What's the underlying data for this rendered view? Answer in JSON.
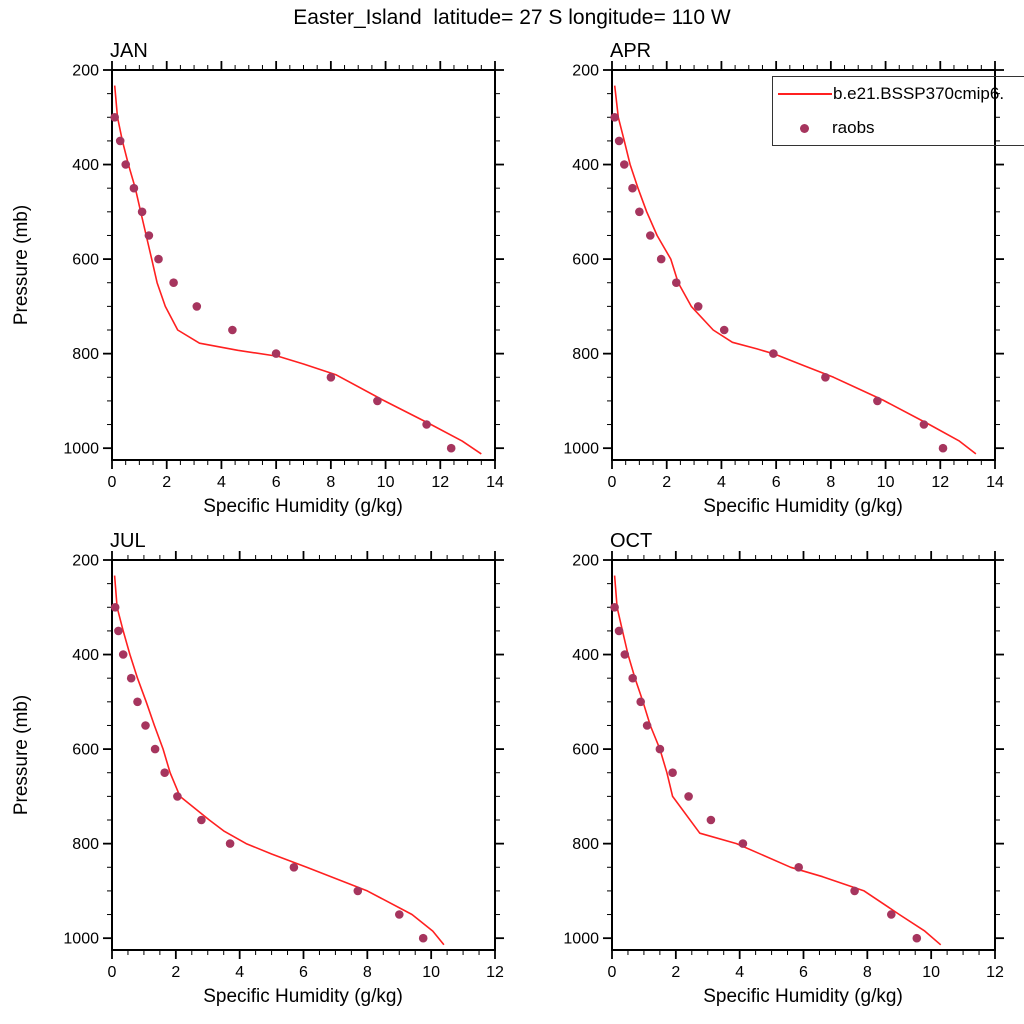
{
  "title": "Easter_Island  latitude= 27 S longitude= 110 W",
  "colors": {
    "model_line": "#ff2020",
    "raobs_dot": "#a6355e",
    "axis": "#000000",
    "text": "#000000",
    "legend_border": "#333333"
  },
  "legend": {
    "position": "top-right of APR panel, clipped at image edge",
    "entries": [
      {
        "label": "b.e21.BSSP370cmip6.",
        "marker": "line"
      },
      {
        "label": "raobs",
        "marker": "dot"
      }
    ]
  },
  "chart_data": [
    {
      "type": "line+scatter",
      "panel": "JAN",
      "xlabel": "Specific Humidity (g/kg)",
      "ylabel": "Pressure (mb)",
      "xlim": [
        0,
        14
      ],
      "ylim": [
        200,
        1025
      ],
      "xticks": [
        0,
        2,
        4,
        6,
        8,
        10,
        12,
        14
      ],
      "x_minor_step": 0.5,
      "yticks": [
        200,
        400,
        600,
        800,
        1000
      ],
      "y_minor_step": 50,
      "y_axis": "inverted (pressure increases downward)",
      "series": [
        {
          "name": "b.e21.BSSP370cmip6.",
          "type": "line",
          "points": [
            [
              0.1,
              233
            ],
            [
              0.2,
              300
            ],
            [
              0.38,
              350
            ],
            [
              0.6,
              400
            ],
            [
              0.85,
              450
            ],
            [
              1.05,
              500
            ],
            [
              1.25,
              550
            ],
            [
              1.45,
              600
            ],
            [
              1.65,
              650
            ],
            [
              1.95,
              700
            ],
            [
              2.4,
              750
            ],
            [
              3.2,
              778
            ],
            [
              4.6,
              793
            ],
            [
              6.1,
              806
            ],
            [
              7.0,
              822
            ],
            [
              8.2,
              845
            ],
            [
              9.9,
              898
            ],
            [
              11.6,
              948
            ],
            [
              12.8,
              985
            ],
            [
              13.5,
              1012
            ]
          ]
        },
        {
          "name": "raobs",
          "type": "scatter",
          "points": [
            [
              0.1,
              300
            ],
            [
              0.3,
              350
            ],
            [
              0.5,
              400
            ],
            [
              0.8,
              450
            ],
            [
              1.1,
              500
            ],
            [
              1.35,
              550
            ],
            [
              1.7,
              600
            ],
            [
              2.25,
              650
            ],
            [
              3.1,
              700
            ],
            [
              4.4,
              750
            ],
            [
              6.0,
              800
            ],
            [
              8.0,
              850
            ],
            [
              9.7,
              900
            ],
            [
              11.5,
              950
            ],
            [
              12.4,
              1000
            ]
          ]
        }
      ]
    },
    {
      "type": "line+scatter",
      "panel": "APR",
      "xlabel": "Specific Humidity (g/kg)",
      "xlim": [
        0,
        14
      ],
      "ylim": [
        200,
        1025
      ],
      "xticks": [
        0,
        2,
        4,
        6,
        8,
        10,
        12,
        14
      ],
      "x_minor_step": 0.5,
      "yticks": [
        200,
        400,
        600,
        800,
        1000
      ],
      "y_minor_step": 50,
      "y_axis": "inverted (pressure increases downward)",
      "series": [
        {
          "name": "b.e21.BSSP370cmip6.",
          "type": "line",
          "points": [
            [
              0.1,
              233
            ],
            [
              0.23,
              300
            ],
            [
              0.45,
              350
            ],
            [
              0.66,
              400
            ],
            [
              0.95,
              450
            ],
            [
              1.27,
              500
            ],
            [
              1.65,
              550
            ],
            [
              2.15,
              600
            ],
            [
              2.42,
              650
            ],
            [
              2.9,
              700
            ],
            [
              3.7,
              750
            ],
            [
              4.4,
              776
            ],
            [
              5.3,
              790
            ],
            [
              5.95,
              801
            ],
            [
              7.0,
              825
            ],
            [
              8.1,
              850
            ],
            [
              9.9,
              898
            ],
            [
              11.6,
              950
            ],
            [
              12.7,
              985
            ],
            [
              13.3,
              1012
            ]
          ]
        },
        {
          "name": "raobs",
          "type": "scatter",
          "points": [
            [
              0.1,
              300
            ],
            [
              0.26,
              350
            ],
            [
              0.45,
              400
            ],
            [
              0.75,
              450
            ],
            [
              1.0,
              500
            ],
            [
              1.4,
              550
            ],
            [
              1.8,
              600
            ],
            [
              2.35,
              650
            ],
            [
              3.15,
              700
            ],
            [
              4.1,
              750
            ],
            [
              5.9,
              800
            ],
            [
              7.8,
              850
            ],
            [
              9.7,
              900
            ],
            [
              11.4,
              950
            ],
            [
              12.1,
              1000
            ]
          ]
        }
      ]
    },
    {
      "type": "line+scatter",
      "panel": "JUL",
      "xlabel": "Specific Humidity (g/kg)",
      "ylabel": "Pressure (mb)",
      "xlim": [
        0,
        12
      ],
      "ylim": [
        200,
        1025
      ],
      "xticks": [
        0,
        2,
        4,
        6,
        8,
        10,
        12
      ],
      "x_minor_step": 0.5,
      "yticks": [
        200,
        400,
        600,
        800,
        1000
      ],
      "y_minor_step": 50,
      "y_axis": "inverted (pressure increases downward)",
      "series": [
        {
          "name": "b.e21.BSSP370cmip6.",
          "type": "line",
          "points": [
            [
              0.08,
              233
            ],
            [
              0.16,
              300
            ],
            [
              0.35,
              350
            ],
            [
              0.56,
              400
            ],
            [
              0.8,
              450
            ],
            [
              1.07,
              500
            ],
            [
              1.33,
              550
            ],
            [
              1.6,
              600
            ],
            [
              1.82,
              650
            ],
            [
              2.13,
              700
            ],
            [
              3.05,
              750
            ],
            [
              3.5,
              773
            ],
            [
              4.2,
              800
            ],
            [
              5.0,
              822
            ],
            [
              6.1,
              850
            ],
            [
              8.0,
              900
            ],
            [
              9.4,
              950
            ],
            [
              10.05,
              985
            ],
            [
              10.4,
              1014
            ]
          ]
        },
        {
          "name": "raobs",
          "type": "scatter",
          "points": [
            [
              0.1,
              300
            ],
            [
              0.2,
              350
            ],
            [
              0.35,
              400
            ],
            [
              0.6,
              450
            ],
            [
              0.8,
              500
            ],
            [
              1.05,
              550
            ],
            [
              1.35,
              600
            ],
            [
              1.65,
              650
            ],
            [
              2.05,
              700
            ],
            [
              2.8,
              750
            ],
            [
              3.7,
              800
            ],
            [
              5.7,
              850
            ],
            [
              7.7,
              900
            ],
            [
              9.0,
              950
            ],
            [
              9.75,
              1000
            ]
          ]
        }
      ]
    },
    {
      "type": "line+scatter",
      "panel": "OCT",
      "xlabel": "Specific Humidity (g/kg)",
      "xlim": [
        0,
        12
      ],
      "ylim": [
        200,
        1025
      ],
      "xticks": [
        0,
        2,
        4,
        6,
        8,
        10,
        12
      ],
      "x_minor_step": 0.5,
      "yticks": [
        200,
        400,
        600,
        800,
        1000
      ],
      "y_minor_step": 50,
      "y_axis": "inverted (pressure increases downward)",
      "series": [
        {
          "name": "b.e21.BSSP370cmip6.",
          "type": "line",
          "points": [
            [
              0.08,
              233
            ],
            [
              0.16,
              300
            ],
            [
              0.33,
              350
            ],
            [
              0.5,
              400
            ],
            [
              0.72,
              450
            ],
            [
              0.97,
              500
            ],
            [
              1.2,
              550
            ],
            [
              1.5,
              600
            ],
            [
              1.72,
              650
            ],
            [
              1.9,
              700
            ],
            [
              2.75,
              778
            ],
            [
              3.9,
              800
            ],
            [
              5.6,
              850
            ],
            [
              6.6,
              870
            ],
            [
              7.9,
              900
            ],
            [
              9.0,
              950
            ],
            [
              9.8,
              985
            ],
            [
              10.3,
              1014
            ]
          ]
        },
        {
          "name": "raobs",
          "type": "scatter",
          "points": [
            [
              0.08,
              300
            ],
            [
              0.22,
              350
            ],
            [
              0.4,
              400
            ],
            [
              0.65,
              450
            ],
            [
              0.9,
              500
            ],
            [
              1.1,
              550
            ],
            [
              1.5,
              600
            ],
            [
              1.9,
              650
            ],
            [
              2.4,
              700
            ],
            [
              3.1,
              750
            ],
            [
              4.1,
              800
            ],
            [
              5.85,
              850
            ],
            [
              7.6,
              900
            ],
            [
              8.75,
              950
            ],
            [
              9.55,
              1000
            ]
          ]
        }
      ]
    }
  ]
}
